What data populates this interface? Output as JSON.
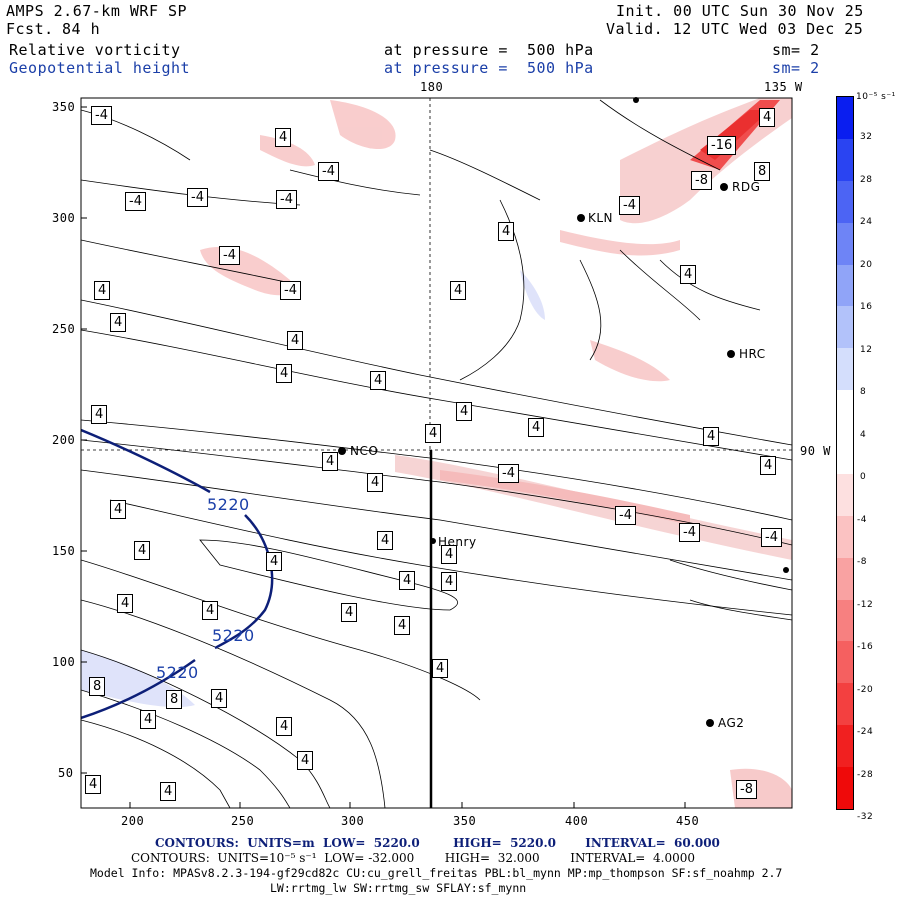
{
  "header": {
    "model": "AMPS 2.67-km WRF SP",
    "fcst_label": "Fcst.",
    "fcst_value": "84 h",
    "init": "Init. 00 UTC Sun 30 Nov 25",
    "valid": "Valid. 12 UTC Wed 03 Dec 25",
    "field1_name": "Relative vorticity",
    "field1_level": "at pressure =  500 hPa",
    "field1_sm": "sm= 2",
    "field2_name": "Geopotential height",
    "field2_level": "at pressure =  500 hPa",
    "field2_sm": "sm= 2"
  },
  "map": {
    "meridian_180_label": "180",
    "meridian_135w_label": "135 W",
    "meridian_90w_label": "90 W",
    "x_ticks": [
      "200",
      "250",
      "300",
      "350",
      "400",
      "450"
    ],
    "y_ticks": [
      "350",
      "300",
      "250",
      "200",
      "150",
      "100",
      "50"
    ],
    "stations": [
      {
        "name": "KLN"
      },
      {
        "name": "RDG"
      },
      {
        "name": "HRC"
      },
      {
        "name": "NCO"
      },
      {
        "name": "Henry"
      },
      {
        "name": "AG2"
      }
    ],
    "vorticity_labels": [
      "-4",
      "-4",
      "-4",
      "-4",
      "-4",
      "-4",
      "-4",
      "-4",
      "-4",
      "-4",
      "-4",
      "-4",
      "-16",
      "-8",
      "8",
      "-8",
      "8",
      "8"
    ],
    "positive_labels": [
      "4"
    ],
    "height_contour_label": "5220"
  },
  "colorbar": {
    "unit": "10⁻⁵ s⁻¹",
    "labels": [
      "32",
      "28",
      "24",
      "20",
      "16",
      "12",
      "8",
      "4",
      "0",
      "-4",
      "-8",
      "-12",
      "-16",
      "-20",
      "-24",
      "-28",
      "-32"
    ],
    "colors": [
      "#0a1ef0",
      "#2a44f2",
      "#4c64f4",
      "#6e84f6",
      "#90a4f8",
      "#b2c2fa",
      "#d4defc",
      "#ffffff",
      "#ffffff",
      "#fde0e0",
      "#fbc2c2",
      "#f9a2a2",
      "#f78080",
      "#f56060",
      "#f34040",
      "#f12020",
      "#ef0a0a"
    ]
  },
  "footer": {
    "line1_contours": "CONTOURS:  UNITS=m  LOW=  5220.0        HIGH=  5220.0       INTERVAL=  60.000",
    "line2_contours": "CONTOURS:  UNITS=10⁻⁵ s⁻¹  LOW= -32.000        HIGH=  32.000        INTERVAL=  4.0000",
    "line3_model": "Model Info: MPASv8.2.3-194-gf29cd82c CU:cu_grell_freitas PBL:bl_mynn MP:mp_thompson SF:sf_noahmp 2.7",
    "line4_model": "LW:rrtmg_lw SW:rrtmg_sw SFLAY:sf_mynn"
  }
}
